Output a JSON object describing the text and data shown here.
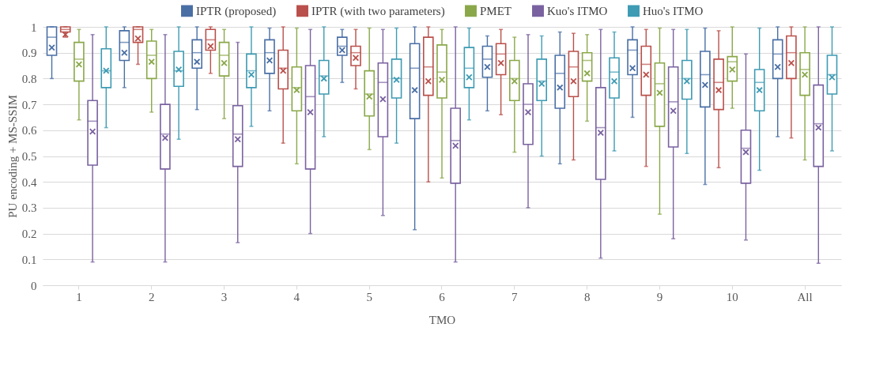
{
  "chart_data": {
    "type": "box",
    "xlabel": "TMO",
    "ylabel": "PU encoding + MS-SSIM",
    "categories": [
      "1",
      "2",
      "3",
      "4",
      "5",
      "6",
      "7",
      "8",
      "9",
      "10",
      "All"
    ],
    "ylim": [
      0,
      1
    ],
    "yticks": [
      0,
      0.1,
      0.2,
      0.3,
      0.4,
      0.5,
      0.6,
      0.7,
      0.8,
      0.9,
      1
    ],
    "grid": "y",
    "legend": "top",
    "series": [
      {
        "name": "IPTR (proposed)",
        "color": "#4a6fa5",
        "boxes": [
          {
            "low": 0.8,
            "q1": 0.89,
            "median": 0.96,
            "q3": 1.0,
            "high": 1.0,
            "mean": 0.92
          },
          {
            "low": 0.765,
            "q1": 0.87,
            "median": 0.94,
            "q3": 0.985,
            "high": 1.0,
            "mean": 0.9
          },
          {
            "low": 0.68,
            "q1": 0.84,
            "median": 0.9,
            "q3": 0.95,
            "high": 1.0,
            "mean": 0.865
          },
          {
            "low": 0.675,
            "q1": 0.82,
            "median": 0.9,
            "q3": 0.95,
            "high": 0.995,
            "mean": 0.87
          },
          {
            "low": 0.785,
            "q1": 0.89,
            "median": 0.925,
            "q3": 0.96,
            "high": 0.99,
            "mean": 0.91
          },
          {
            "low": 0.215,
            "q1": 0.645,
            "median": 0.84,
            "q3": 0.935,
            "high": 1.0,
            "mean": 0.755
          },
          {
            "low": 0.675,
            "q1": 0.805,
            "median": 0.875,
            "q3": 0.925,
            "high": 0.965,
            "mean": 0.845
          },
          {
            "low": 0.47,
            "q1": 0.685,
            "median": 0.82,
            "q3": 0.89,
            "high": 0.98,
            "mean": 0.765
          },
          {
            "low": 0.65,
            "q1": 0.815,
            "median": 0.91,
            "q3": 0.95,
            "high": 1.0,
            "mean": 0.84
          },
          {
            "low": 0.39,
            "q1": 0.69,
            "median": 0.815,
            "q3": 0.905,
            "high": 0.995,
            "mean": 0.775
          },
          {
            "low": 0.575,
            "q1": 0.8,
            "median": 0.895,
            "q3": 0.95,
            "high": 1.0,
            "mean": 0.845
          }
        ]
      },
      {
        "name": "IPTR (with two parameters)",
        "color": "#b9504b",
        "boxes": [
          {
            "low": 0.96,
            "q1": 0.98,
            "median": 0.99,
            "q3": 1.0,
            "high": 1.0,
            "mean": 0.97
          },
          {
            "low": 0.855,
            "q1": 0.94,
            "median": 0.99,
            "q3": 1.0,
            "high": 1.0,
            "mean": 0.955
          },
          {
            "low": 0.82,
            "q1": 0.91,
            "median": 0.95,
            "q3": 0.99,
            "high": 1.0,
            "mean": 0.925
          },
          {
            "low": 0.55,
            "q1": 0.76,
            "median": 0.84,
            "q3": 0.91,
            "high": 1.0,
            "mean": 0.83
          },
          {
            "low": 0.76,
            "q1": 0.85,
            "median": 0.9,
            "q3": 0.925,
            "high": 0.99,
            "mean": 0.88
          },
          {
            "low": 0.4,
            "q1": 0.735,
            "median": 0.845,
            "q3": 0.96,
            "high": 1.0,
            "mean": 0.79
          },
          {
            "low": 0.66,
            "q1": 0.815,
            "median": 0.895,
            "q3": 0.935,
            "high": 0.99,
            "mean": 0.86
          },
          {
            "low": 0.485,
            "q1": 0.73,
            "median": 0.845,
            "q3": 0.905,
            "high": 0.975,
            "mean": 0.79
          },
          {
            "low": 0.46,
            "q1": 0.735,
            "median": 0.855,
            "q3": 0.925,
            "high": 0.99,
            "mean": 0.815
          },
          {
            "low": 0.455,
            "q1": 0.68,
            "median": 0.785,
            "q3": 0.875,
            "high": 0.985,
            "mean": 0.755
          },
          {
            "low": 0.57,
            "q1": 0.8,
            "median": 0.9,
            "q3": 0.965,
            "high": 1.0,
            "mean": 0.86
          }
        ]
      },
      {
        "name": "PMET",
        "color": "#8aa84a",
        "boxes": [
          {
            "low": 0.64,
            "q1": 0.79,
            "median": 0.875,
            "q3": 0.94,
            "high": 0.99,
            "mean": 0.855
          },
          {
            "low": 0.67,
            "q1": 0.8,
            "median": 0.89,
            "q3": 0.945,
            "high": 0.99,
            "mean": 0.865
          },
          {
            "low": 0.645,
            "q1": 0.81,
            "median": 0.89,
            "q3": 0.94,
            "high": 0.99,
            "mean": 0.86
          },
          {
            "low": 0.47,
            "q1": 0.675,
            "median": 0.765,
            "q3": 0.845,
            "high": 0.995,
            "mean": 0.755
          },
          {
            "low": 0.525,
            "q1": 0.655,
            "median": 0.74,
            "q3": 0.83,
            "high": 0.995,
            "mean": 0.73
          },
          {
            "low": 0.415,
            "q1": 0.725,
            "median": 0.825,
            "q3": 0.93,
            "high": 0.99,
            "mean": 0.795
          },
          {
            "low": 0.515,
            "q1": 0.715,
            "median": 0.8,
            "q3": 0.87,
            "high": 0.96,
            "mean": 0.79
          },
          {
            "low": 0.635,
            "q1": 0.79,
            "median": 0.87,
            "q3": 0.9,
            "high": 0.97,
            "mean": 0.82
          },
          {
            "low": 0.275,
            "q1": 0.615,
            "median": 0.78,
            "q3": 0.86,
            "high": 0.995,
            "mean": 0.745
          },
          {
            "low": 0.685,
            "q1": 0.79,
            "median": 0.865,
            "q3": 0.885,
            "high": 1.0,
            "mean": 0.835
          },
          {
            "low": 0.485,
            "q1": 0.735,
            "median": 0.835,
            "q3": 0.9,
            "high": 1.0,
            "mean": 0.815
          }
        ]
      },
      {
        "name": "Kuo's ITMO",
        "color": "#7a62a0",
        "boxes": [
          {
            "low": 0.09,
            "q1": 0.465,
            "median": 0.635,
            "q3": 0.715,
            "high": 0.97,
            "mean": 0.595
          },
          {
            "low": 0.09,
            "q1": 0.45,
            "median": 0.585,
            "q3": 0.7,
            "high": 0.97,
            "mean": 0.57
          },
          {
            "low": 0.165,
            "q1": 0.46,
            "median": 0.585,
            "q3": 0.695,
            "high": 0.94,
            "mean": 0.565
          },
          {
            "low": 0.2,
            "q1": 0.45,
            "median": 0.73,
            "q3": 0.85,
            "high": 0.99,
            "mean": 0.67
          },
          {
            "low": 0.27,
            "q1": 0.575,
            "median": 0.785,
            "q3": 0.86,
            "high": 0.99,
            "mean": 0.72
          },
          {
            "low": 0.09,
            "q1": 0.395,
            "median": 0.56,
            "q3": 0.685,
            "high": 1.0,
            "mean": 0.54
          },
          {
            "low": 0.3,
            "q1": 0.545,
            "median": 0.7,
            "q3": 0.78,
            "high": 0.97,
            "mean": 0.67
          },
          {
            "low": 0.105,
            "q1": 0.41,
            "median": 0.61,
            "q3": 0.765,
            "high": 0.99,
            "mean": 0.59
          },
          {
            "low": 0.18,
            "q1": 0.535,
            "median": 0.71,
            "q3": 0.845,
            "high": 0.99,
            "mean": 0.675
          },
          {
            "low": 0.175,
            "q1": 0.395,
            "median": 0.53,
            "q3": 0.6,
            "high": 0.895,
            "mean": 0.515
          },
          {
            "low": 0.085,
            "q1": 0.46,
            "median": 0.625,
            "q3": 0.775,
            "high": 1.0,
            "mean": 0.61
          }
        ]
      },
      {
        "name": "Huo's ITMO",
        "color": "#3e9bb3",
        "boxes": [
          {
            "low": 0.61,
            "q1": 0.765,
            "median": 0.83,
            "q3": 0.915,
            "high": 1.0,
            "mean": 0.83
          },
          {
            "low": 0.565,
            "q1": 0.77,
            "median": 0.83,
            "q3": 0.905,
            "high": 1.0,
            "mean": 0.835
          },
          {
            "low": 0.615,
            "q1": 0.765,
            "median": 0.83,
            "q3": 0.895,
            "high": 1.0,
            "mean": 0.815
          },
          {
            "low": 0.575,
            "q1": 0.74,
            "median": 0.81,
            "q3": 0.87,
            "high": 1.0,
            "mean": 0.8
          },
          {
            "low": 0.55,
            "q1": 0.725,
            "median": 0.8,
            "q3": 0.875,
            "high": 0.995,
            "mean": 0.795
          },
          {
            "low": 0.64,
            "q1": 0.765,
            "median": 0.84,
            "q3": 0.92,
            "high": 0.995,
            "mean": 0.805
          },
          {
            "low": 0.5,
            "q1": 0.715,
            "median": 0.79,
            "q3": 0.875,
            "high": 0.965,
            "mean": 0.78
          },
          {
            "low": 0.52,
            "q1": 0.725,
            "median": 0.825,
            "q3": 0.88,
            "high": 0.98,
            "mean": 0.79
          },
          {
            "low": 0.51,
            "q1": 0.72,
            "median": 0.8,
            "q3": 0.87,
            "high": 0.99,
            "mean": 0.79
          },
          {
            "low": 0.445,
            "q1": 0.675,
            "median": 0.785,
            "q3": 0.835,
            "high": 0.995,
            "mean": 0.755
          },
          {
            "low": 0.52,
            "q1": 0.74,
            "median": 0.815,
            "q3": 0.89,
            "high": 1.0,
            "mean": 0.805
          }
        ]
      }
    ]
  }
}
